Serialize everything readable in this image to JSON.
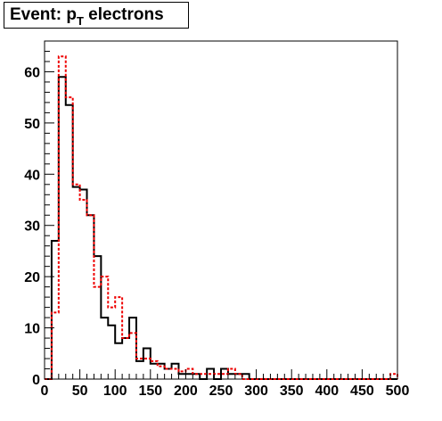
{
  "title": {
    "main": "Event: p",
    "sub": "T",
    "rest": " electrons"
  },
  "chart_data": {
    "type": "histogram",
    "title": "Event: p_T electrons",
    "xlim": [
      0,
      500
    ],
    "ylim": [
      0,
      66
    ],
    "bin_width": 10,
    "x_ticks": [
      0,
      50,
      100,
      150,
      200,
      250,
      300,
      350,
      400,
      450,
      500
    ],
    "x_tick_labels": [
      "0",
      "50",
      "100",
      "150",
      "200",
      "250",
      "300",
      "350",
      "400",
      "450",
      "500"
    ],
    "y_ticks": [
      0,
      10,
      20,
      30,
      40,
      50,
      60
    ],
    "y_tick_labels": [
      "0",
      "10",
      "20",
      "30",
      "40",
      "50",
      "60"
    ],
    "legend": "none",
    "grid": false,
    "series": [
      {
        "style": "solid",
        "color": "#000000",
        "values": [
          0,
          27,
          59,
          53.5,
          37.5,
          37,
          32,
          24,
          12,
          10.5,
          7,
          8,
          12,
          3.5,
          6,
          3,
          3,
          2,
          3,
          1,
          1,
          1,
          0,
          2,
          0,
          2,
          1,
          1,
          1,
          0,
          0,
          0,
          0,
          0,
          0,
          0,
          0,
          0,
          0,
          0,
          0,
          0,
          0,
          0,
          0,
          0,
          0,
          0,
          0,
          0
        ]
      },
      {
        "style": "dashed",
        "color": "#ee0000",
        "values": [
          0,
          13,
          63,
          55,
          38,
          35,
          32,
          18,
          20,
          14,
          16,
          8,
          9,
          4,
          4,
          3.5,
          2.5,
          2,
          2,
          1.5,
          2,
          1,
          1,
          1,
          1,
          1,
          2,
          1,
          0,
          0,
          0,
          0,
          0,
          0,
          0,
          0,
          0,
          0,
          0,
          0,
          0,
          0,
          0,
          0,
          0,
          0,
          0,
          0,
          0,
          1
        ]
      }
    ]
  }
}
